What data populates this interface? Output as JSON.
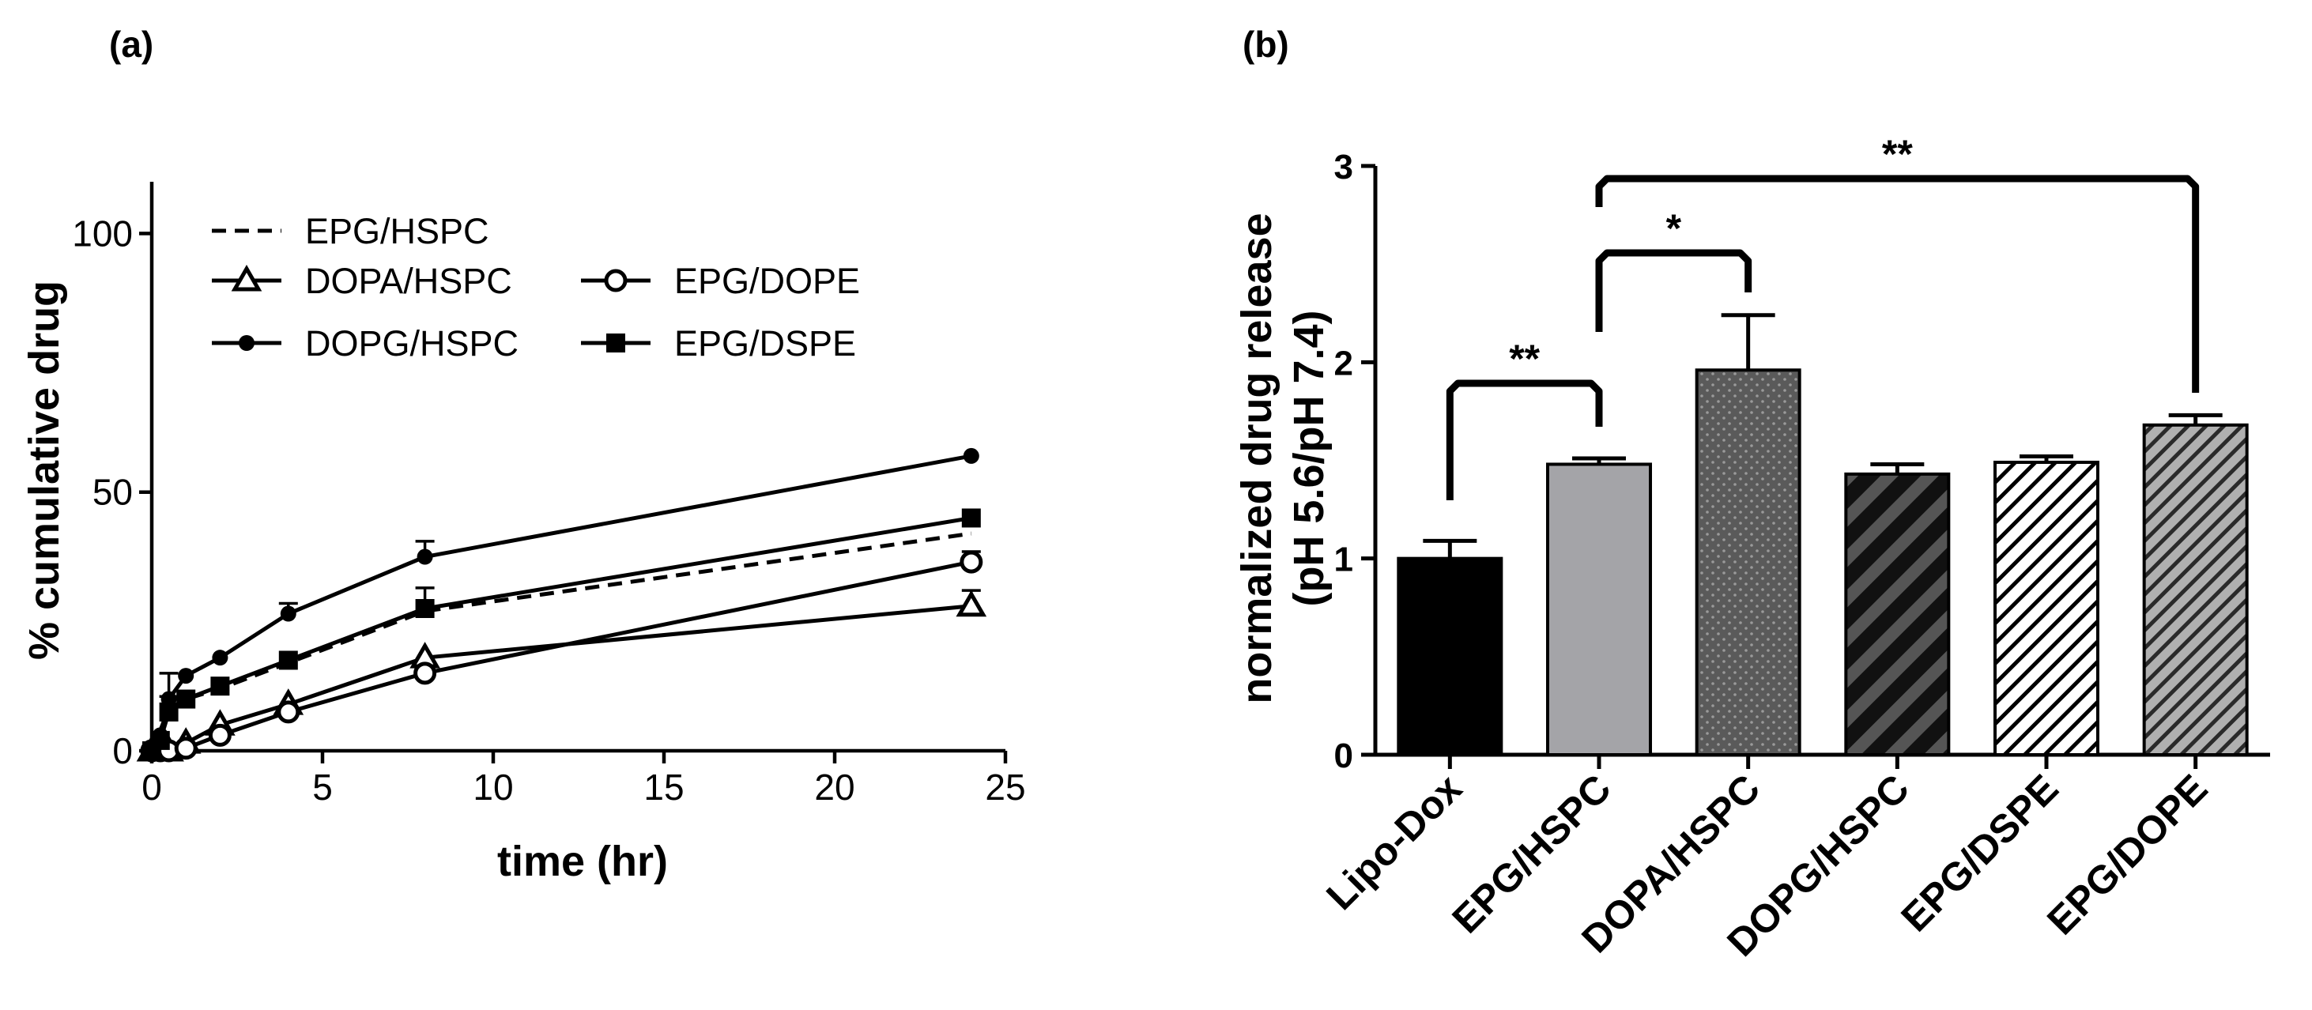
{
  "chart_data": [
    {
      "panel_label": "(a)",
      "type": "line",
      "xlabel": "time (hr)",
      "ylabel": "% cumulative drug",
      "xlim": [
        0,
        25
      ],
      "ylim": [
        0,
        110
      ],
      "x_ticks": [
        0,
        5,
        10,
        15,
        20,
        25
      ],
      "y_ticks": [
        0,
        50,
        100
      ],
      "x": [
        0,
        0.25,
        0.5,
        1,
        2,
        4,
        8,
        24
      ],
      "series": [
        {
          "name": "EPG/HSPC",
          "marker": "none",
          "line": "dashed",
          "values": [
            0,
            4,
            8,
            10,
            12,
            17,
            27,
            42
          ],
          "errors": [
            0,
            0,
            0,
            0,
            0,
            0,
            0,
            0
          ]
        },
        {
          "name": "DOPA/HSPC",
          "marker": "open-triangle",
          "line": "solid",
          "values": [
            0,
            0,
            0,
            1.5,
            5,
            9,
            18,
            28
          ],
          "errors": [
            0,
            0,
            0,
            0,
            0,
            0,
            0,
            3
          ]
        },
        {
          "name": "EPG/DOPE",
          "marker": "open-circle",
          "line": "solid",
          "values": [
            0,
            0,
            0,
            0.5,
            3,
            7.5,
            15,
            36.5
          ],
          "errors": [
            0,
            0,
            0,
            0,
            0,
            0,
            0,
            2
          ]
        },
        {
          "name": "DOPG/HSPC",
          "marker": "filled-circle",
          "line": "solid",
          "values": [
            0,
            3,
            10,
            14.5,
            18,
            26.5,
            37.5,
            57
          ],
          "errors": [
            0,
            0,
            5,
            0,
            0,
            2,
            3,
            0
          ]
        },
        {
          "name": "EPG/DSPE",
          "marker": "filled-square",
          "line": "solid",
          "values": [
            0,
            2,
            7.5,
            10,
            12.5,
            17.5,
            27.5,
            45
          ],
          "errors": [
            0,
            0,
            3,
            0,
            0,
            0,
            4,
            0
          ]
        }
      ],
      "legend": [
        {
          "label": "EPG/HSPC",
          "series": 0
        },
        {
          "label": "DOPA/HSPC",
          "series": 1
        },
        {
          "label": "EPG/DOPE",
          "series": 2
        },
        {
          "label": "DOPG/HSPC",
          "series": 3
        },
        {
          "label": "EPG/DSPE",
          "series": 4
        }
      ]
    },
    {
      "panel_label": "(b)",
      "type": "bar",
      "ylabel": "normalized drug release",
      "ylabel2": "(pH 5.6/pH 7.4)",
      "ylim": [
        0,
        3
      ],
      "y_ticks": [
        0,
        1,
        2,
        3
      ],
      "categories": [
        "Lipo-Dox",
        "EPG/HSPC",
        "DOPA/HSPC",
        "DOPG/HSPC",
        "EPG/DSPE",
        "EPG/DOPE"
      ],
      "values": [
        1.0,
        1.48,
        1.96,
        1.43,
        1.49,
        1.68
      ],
      "errors": [
        0.09,
        0.03,
        0.28,
        0.05,
        0.03,
        0.05
      ],
      "fills": [
        {
          "color": "#000000",
          "pattern": "solid"
        },
        {
          "color": "#a4a4a8",
          "pattern": "solid"
        },
        {
          "color": "#5a5a5a",
          "pattern": "dots"
        },
        {
          "color": "#2a2a2a",
          "pattern": "bold-stripes"
        },
        {
          "color": "#ffffff",
          "pattern": "thin-stripes"
        },
        {
          "color": "#9a9a9a",
          "pattern": "thin-stripes"
        }
      ],
      "significance": [
        {
          "from": 0,
          "to": 1,
          "label": "**"
        },
        {
          "from": 1,
          "to": 2,
          "label": "*"
        },
        {
          "from": 1,
          "to": 5,
          "label": "**"
        }
      ]
    }
  ]
}
